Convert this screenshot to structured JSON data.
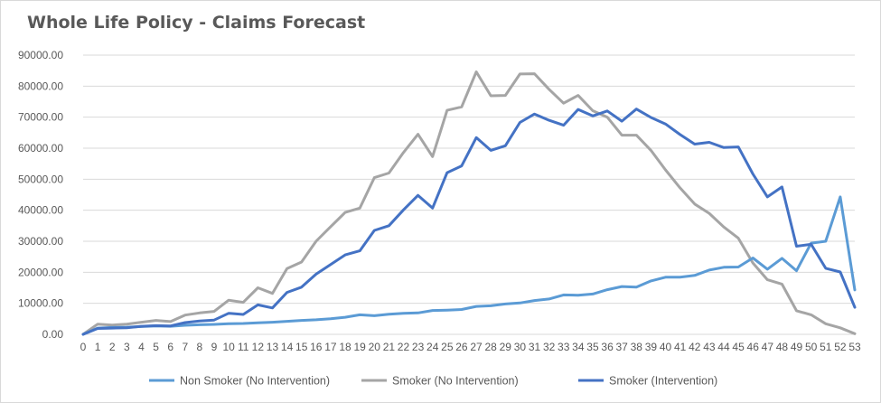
{
  "chart_data": {
    "type": "line",
    "title": "Whole Life Policy - Claims Forecast",
    "xlabel": "",
    "ylabel": "",
    "ylim": [
      0,
      90000
    ],
    "y_ticks": [
      "0.00",
      "10000.00",
      "20000.00",
      "30000.00",
      "40000.00",
      "50000.00",
      "60000.00",
      "70000.00",
      "80000.00",
      "90000.00"
    ],
    "x": [
      0,
      1,
      2,
      3,
      4,
      5,
      6,
      7,
      8,
      9,
      10,
      11,
      12,
      13,
      14,
      15,
      16,
      17,
      18,
      19,
      20,
      21,
      22,
      23,
      24,
      25,
      26,
      27,
      28,
      29,
      30,
      31,
      32,
      33,
      34,
      35,
      36,
      37,
      38,
      39,
      40,
      41,
      42,
      43,
      44,
      45,
      46,
      47,
      48,
      49,
      50,
      51,
      52,
      53
    ],
    "grid": true,
    "legend_position": "bottom",
    "series": [
      {
        "name": "Non Smoker (No Intervention)",
        "color": "#5b9bd5",
        "values": [
          0,
          2000,
          2200,
          2300,
          2500,
          2700,
          2600,
          2900,
          3100,
          3200,
          3400,
          3500,
          3700,
          3900,
          4200,
          4500,
          4700,
          5000,
          5500,
          6300,
          6000,
          6500,
          6800,
          6900,
          7700,
          7800,
          8000,
          9000,
          9200,
          9800,
          10100,
          10900,
          11400,
          12700,
          12600,
          13000,
          14400,
          15400,
          15200,
          17200,
          18400,
          18400,
          19000,
          20700,
          21600,
          21700,
          24600,
          21000,
          24500,
          20500,
          29400,
          30000,
          44300,
          14300
        ]
      },
      {
        "name": "Smoker (No Intervention)",
        "color": "#a5a5a5",
        "values": [
          0,
          3300,
          3000,
          3300,
          3900,
          4500,
          4100,
          6200,
          6900,
          7400,
          11000,
          10300,
          15000,
          13200,
          21200,
          23300,
          30000,
          34700,
          39300,
          40700,
          50500,
          52000,
          58600,
          64500,
          57300,
          72200,
          73300,
          84600,
          76900,
          77000,
          83900,
          84000,
          79000,
          74500,
          77000,
          72100,
          70000,
          64200,
          64200,
          59300,
          53000,
          47200,
          42000,
          39000,
          34600,
          31000,
          23000,
          17600,
          16200,
          7600,
          6300,
          3400,
          2100,
          200
        ]
      },
      {
        "name": "Smoker (Intervention)",
        "color": "#4472c4",
        "values": [
          0,
          1900,
          2000,
          2100,
          2600,
          2800,
          2700,
          3800,
          4300,
          4600,
          6800,
          6400,
          9500,
          8500,
          13500,
          15200,
          19400,
          22500,
          25600,
          26900,
          33500,
          35000,
          40100,
          44800,
          40700,
          52100,
          54300,
          63400,
          59300,
          60800,
          68300,
          71000,
          69000,
          67400,
          72500,
          70400,
          72000,
          68700,
          72600,
          69900,
          67800,
          64400,
          61300,
          61900,
          60200,
          60400,
          51700,
          44300,
          47500,
          28400,
          29000,
          21300,
          20100,
          8700
        ]
      }
    ]
  }
}
